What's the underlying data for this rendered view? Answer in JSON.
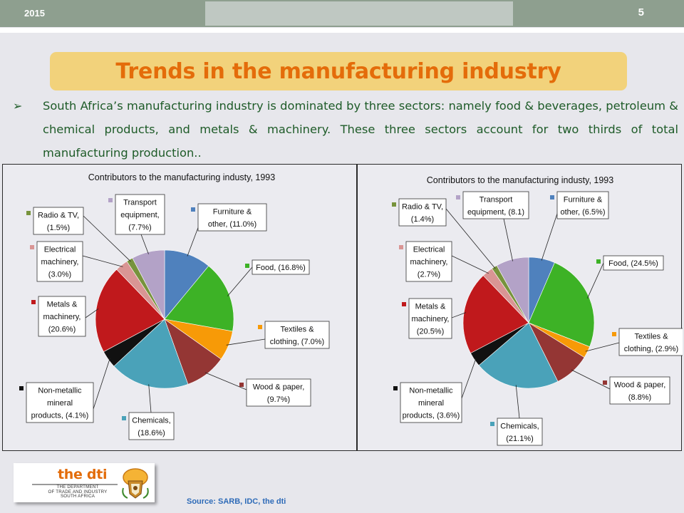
{
  "slide": {
    "year": "2015",
    "page_number": "5",
    "title": "Trends in the manufacturing industry",
    "bullet": "South Africa’s manufacturing industry is dominated by three sectors: namely food & beverages, petroleum & chemical products, and metals & machinery. These three sectors account for two thirds of total manufacturing production..",
    "source": "Source: SARB, IDC, the dti"
  },
  "logo": {
    "name": "the dti",
    "subtitle_1": "THE DEPARTMENT",
    "subtitle_2": "OF TRADE AND INDUSTRY",
    "subtitle_3": "SOUTH AFRICA"
  },
  "colors": {
    "furniture": "#4f81bd",
    "food": "#3db226",
    "textiles": "#f79a07",
    "wood": "#943634",
    "chemicals": "#4aa2b9",
    "nonmetallic": "#111111",
    "metals": "#c0191c",
    "electrical": "#d99594",
    "radio": "#77933c",
    "transport": "#b3a2c7"
  },
  "chart_data": [
    {
      "type": "pie",
      "title": "Contributors to the manufacturing industy, 1993",
      "slices": [
        {
          "key": "furniture",
          "line1": "Furniture &",
          "line2": "other, (11.0%)",
          "line3": "",
          "value": 11.0
        },
        {
          "key": "food",
          "line1": "Food, (16.8%)",
          "line2": "",
          "line3": "",
          "value": 16.8
        },
        {
          "key": "textiles",
          "line1": "Textiles &",
          "line2": "clothing, (7.0%)",
          "line3": "",
          "value": 7.0
        },
        {
          "key": "wood",
          "line1": "Wood & paper,",
          "line2": "(9.7%)",
          "line3": "",
          "value": 9.7
        },
        {
          "key": "chemicals",
          "line1": "Chemicals,",
          "line2": "(18.6%)",
          "line3": "",
          "value": 18.6
        },
        {
          "key": "nonmetallic",
          "line1": "Non-metallic",
          "line2": "mineral",
          "line3": "products, (4.1%)",
          "value": 4.1
        },
        {
          "key": "metals",
          "line1": "Metals &",
          "line2": "machinery,",
          "line3": "(20.6%)",
          "value": 20.6
        },
        {
          "key": "electrical",
          "line1": "Electrical",
          "line2": "machinery,",
          "line3": "(3.0%)",
          "value": 3.0
        },
        {
          "key": "radio",
          "line1": "Radio & TV,",
          "line2": "(1.5%)",
          "line3": "",
          "value": 1.5
        },
        {
          "key": "transport",
          "line1": "Transport",
          "line2": "equipment,",
          "line3": "(7.7%)",
          "value": 7.7
        }
      ]
    },
    {
      "type": "pie",
      "title": "Contributors to the manufacturing industy, 1993",
      "slices": [
        {
          "key": "furniture",
          "line1": "Furniture &",
          "line2": "other, (6.5%)",
          "line3": "",
          "value": 6.5
        },
        {
          "key": "food",
          "line1": "Food, (24.5%)",
          "line2": "",
          "line3": "",
          "value": 24.5
        },
        {
          "key": "textiles",
          "line1": "Textiles &",
          "line2": "clothing, (2.9%)",
          "line3": "",
          "value": 2.9
        },
        {
          "key": "wood",
          "line1": "Wood & paper,",
          "line2": "(8.8%)",
          "line3": "",
          "value": 8.8
        },
        {
          "key": "chemicals",
          "line1": "Chemicals,",
          "line2": "(21.1%)",
          "line3": "",
          "value": 21.1
        },
        {
          "key": "nonmetallic",
          "line1": "Non-metallic",
          "line2": "mineral",
          "line3": "products, (3.6%)",
          "value": 3.6
        },
        {
          "key": "metals",
          "line1": "Metals &",
          "line2": "machinery,",
          "line3": "(20.5%)",
          "value": 20.5
        },
        {
          "key": "electrical",
          "line1": "Electrical",
          "line2": "machinery,",
          "line3": "(2.7%)",
          "value": 2.7
        },
        {
          "key": "radio",
          "line1": "Radio & TV,",
          "line2": "(1.4%)",
          "line3": "",
          "value": 1.4
        },
        {
          "key": "transport",
          "line1": "Transport",
          "line2": "equipment, (8.1)",
          "line3": "",
          "value": 8.1
        }
      ]
    }
  ]
}
